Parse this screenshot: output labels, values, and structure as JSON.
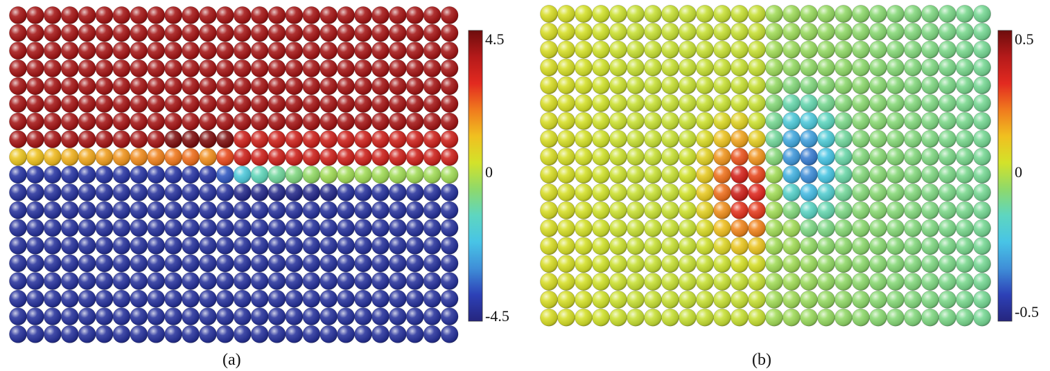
{
  "panels": [
    {
      "id": "a",
      "caption": "(a)",
      "colorbar": {
        "max_label": "4.5",
        "mid_label": "0",
        "min_label": "-4.5",
        "min": -4.5,
        "max": 4.5
      },
      "lattice": {
        "rows": 19,
        "cols": 26
      }
    },
    {
      "id": "b",
      "caption": "(b)",
      "colorbar": {
        "max_label": "0.5",
        "mid_label": "0",
        "min_label": "-0.5",
        "min": -0.5,
        "max": 0.5
      },
      "lattice": {
        "rows": 18,
        "cols": 26
      }
    }
  ],
  "colormap": [
    "#25257e",
    "#2d41b7",
    "#3f8fd8",
    "#48c4e6",
    "#5ed6c0",
    "#8fd96a",
    "#d3e22a",
    "#f0c020",
    "#f07a1e",
    "#e22a20",
    "#b51a1a",
    "#6e0d0d"
  ]
}
